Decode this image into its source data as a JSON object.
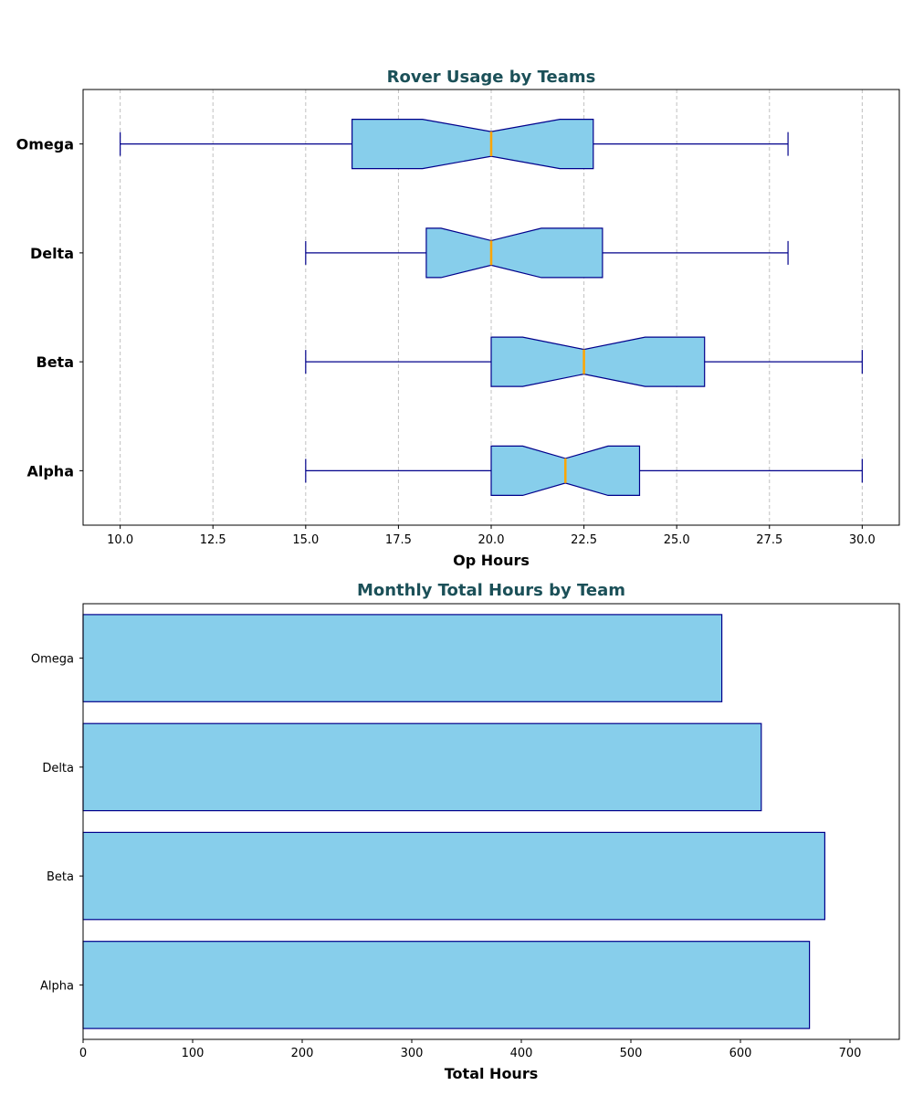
{
  "chart_data": [
    {
      "type": "box",
      "title": "Rover Usage by Teams",
      "xlabel": "Op Hours",
      "ylabel": "",
      "orientation": "horizontal",
      "notched": true,
      "grid": "x-dashed",
      "xlim": [
        9.0,
        31.0
      ],
      "xticks": [
        10.0,
        12.5,
        15.0,
        17.5,
        20.0,
        22.5,
        25.0,
        27.5,
        30.0
      ],
      "xtick_labels": [
        "10.0",
        "12.5",
        "15.0",
        "17.5",
        "20.0",
        "22.5",
        "25.0",
        "27.5",
        "30.0"
      ],
      "categories": [
        "Alpha",
        "Beta",
        "Delta",
        "Omega"
      ],
      "boxes": [
        {
          "name": "Alpha",
          "whisker_low": 15,
          "q1": 20,
          "notch_low": 20.85,
          "median": 22,
          "notch_high": 23.15,
          "q3": 24,
          "whisker_high": 30
        },
        {
          "name": "Beta",
          "whisker_low": 15,
          "q1": 20,
          "notch_low": 20.85,
          "median": 22.5,
          "notch_high": 24.15,
          "q3": 25.75,
          "whisker_high": 30
        },
        {
          "name": "Delta",
          "whisker_low": 15,
          "q1": 18.25,
          "notch_low": 18.65,
          "median": 20,
          "notch_high": 21.35,
          "q3": 23,
          "whisker_high": 28
        },
        {
          "name": "Omega",
          "whisker_low": 10,
          "q1": 16.25,
          "notch_low": 18.15,
          "median": 20,
          "notch_high": 21.85,
          "q3": 22.75,
          "whisker_high": 28
        }
      ],
      "colors": {
        "box_fill": "#87ceeb",
        "box_edge": "#00008b",
        "median": "#ffa500",
        "grid": "#c0c0c0",
        "title": "#1b5058"
      }
    },
    {
      "type": "bar",
      "orientation": "horizontal",
      "title": "Monthly Total Hours by Team",
      "xlabel": "Total Hours",
      "ylabel": "",
      "xlim": [
        0,
        745
      ],
      "xticks": [
        0,
        100,
        200,
        300,
        400,
        500,
        600,
        700
      ],
      "xtick_labels": [
        "0",
        "100",
        "200",
        "300",
        "400",
        "500",
        "600",
        "700"
      ],
      "categories": [
        "Alpha",
        "Beta",
        "Delta",
        "Omega"
      ],
      "values": [
        663,
        677,
        619,
        583
      ],
      "colors": {
        "bar_fill": "#87ceeb",
        "bar_edge": "#00008b",
        "title": "#1b5058"
      }
    }
  ]
}
